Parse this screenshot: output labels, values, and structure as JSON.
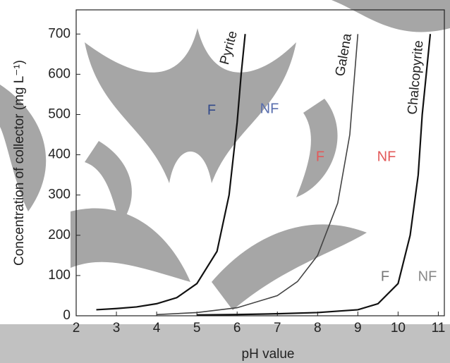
{
  "chart_data": {
    "type": "line",
    "xlabel": "pH value",
    "ylabel": "Concentration of collector (mg L⁻¹)",
    "xlim": [
      2,
      11.15
    ],
    "ylim": [
      0,
      760
    ],
    "xticks": [
      2,
      3,
      4,
      5,
      6,
      7,
      8,
      9,
      10,
      11
    ],
    "yticks": [
      0,
      100,
      200,
      300,
      400,
      500,
      600,
      700
    ],
    "series": [
      {
        "name": "Pyrite",
        "color": "#111111",
        "x": [
          2.5,
          3,
          3.5,
          4,
          4.5,
          5,
          5.5,
          5.8,
          6,
          6.1,
          6.2
        ],
        "values": [
          15,
          18,
          22,
          30,
          45,
          80,
          160,
          300,
          480,
          600,
          700
        ]
      },
      {
        "name": "Galena",
        "color": "#444444",
        "x": [
          4,
          5,
          6,
          7,
          7.5,
          8,
          8.5,
          8.8,
          9
        ],
        "values": [
          3,
          8,
          20,
          50,
          85,
          150,
          280,
          450,
          700
        ]
      },
      {
        "name": "Chalcopyrite",
        "color": "#111111",
        "x": [
          5,
          6,
          7,
          8,
          9,
          9.5,
          10,
          10.3,
          10.5,
          10.6,
          10.8
        ],
        "values": [
          2,
          3,
          5,
          8,
          15,
          30,
          80,
          200,
          350,
          500,
          700
        ]
      }
    ],
    "annotations": [
      "F",
      "NF",
      "F",
      "NF",
      "F",
      "NF"
    ]
  }
}
